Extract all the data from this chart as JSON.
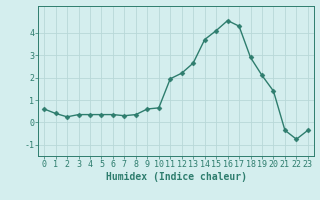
{
  "x": [
    0,
    1,
    2,
    3,
    4,
    5,
    6,
    7,
    8,
    9,
    10,
    11,
    12,
    13,
    14,
    15,
    16,
    17,
    18,
    19,
    20,
    21,
    22,
    23
  ],
  "y": [
    0.6,
    0.4,
    0.25,
    0.35,
    0.35,
    0.35,
    0.35,
    0.3,
    0.35,
    0.6,
    0.65,
    1.95,
    2.2,
    2.65,
    3.7,
    4.1,
    4.55,
    4.3,
    2.9,
    2.1,
    1.4,
    -0.35,
    -0.75,
    -0.35
  ],
  "line_color": "#2e7d6e",
  "marker": "D",
  "markersize": 2.5,
  "linewidth": 1.0,
  "background_color": "#d4eeee",
  "grid_color": "#b8d8d8",
  "xlabel": "Humidex (Indice chaleur)",
  "xlabel_fontsize": 7,
  "tick_fontsize": 6,
  "ylim": [
    -1.5,
    5.2
  ],
  "xlim": [
    -0.5,
    23.5
  ],
  "yticks": [
    -1,
    0,
    1,
    2,
    3,
    4
  ],
  "xticks": [
    0,
    1,
    2,
    3,
    4,
    5,
    6,
    7,
    8,
    9,
    10,
    11,
    12,
    13,
    14,
    15,
    16,
    17,
    18,
    19,
    20,
    21,
    22,
    23
  ],
  "title": ""
}
